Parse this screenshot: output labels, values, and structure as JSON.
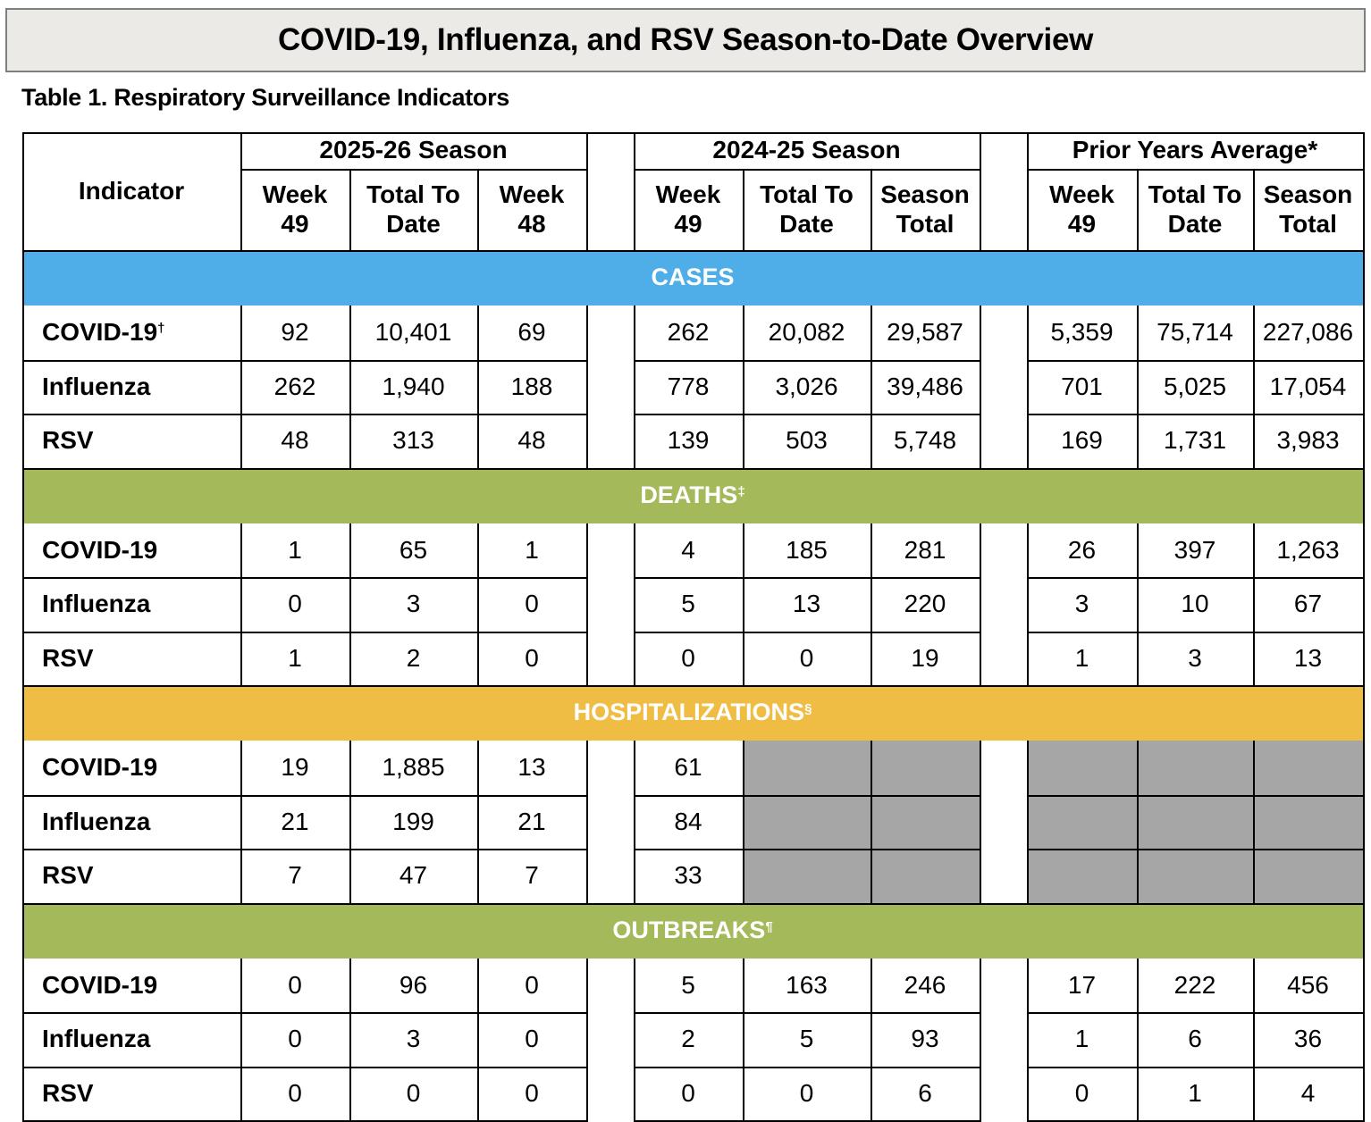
{
  "title": "COVID-19, Influenza, and RSV Season-to-Date Overview",
  "table_caption": "Table 1. Respiratory Surveillance Indicators",
  "colors": {
    "cases": "#4fade8",
    "deaths": "#a4b95a",
    "hospitalizations": "#f0bd44",
    "outbreaks": "#a4b95a",
    "not_available": "#a6a6a6",
    "title_background": "#eceae6"
  },
  "header": {
    "indicator": "Indicator",
    "groups": [
      "2025-26 Season",
      "2024-25 Season",
      "Prior Years Average*"
    ],
    "columns": [
      [
        "Week",
        "49"
      ],
      [
        "Total To",
        "Date"
      ],
      [
        "Week",
        "48"
      ],
      [
        "Week",
        "49"
      ],
      [
        "Total To",
        "Date"
      ],
      [
        "Season",
        "Total"
      ],
      [
        "Week",
        "49"
      ],
      [
        "Total To",
        "Date"
      ],
      [
        "Season",
        "Total"
      ]
    ]
  },
  "sections": [
    {
      "title": "CASES",
      "mark": "",
      "rows": [
        {
          "label": "COVID-19",
          "mark": "†",
          "values": [
            "92",
            "10,401",
            "69",
            "262",
            "20,082",
            "29,587",
            "5,359",
            "75,714",
            "227,086"
          ]
        },
        {
          "label": "Influenza",
          "mark": "",
          "values": [
            "262",
            "1,940",
            "188",
            "778",
            "3,026",
            "39,486",
            "701",
            "5,025",
            "17,054"
          ]
        },
        {
          "label": "RSV",
          "mark": "",
          "values": [
            "48",
            "313",
            "48",
            "139",
            "503",
            "5,748",
            "169",
            "1,731",
            "3,983"
          ]
        }
      ]
    },
    {
      "title": "DEATHS",
      "mark": "‡",
      "rows": [
        {
          "label": "COVID-19",
          "mark": "",
          "values": [
            "1",
            "65",
            "1",
            "4",
            "185",
            "281",
            "26",
            "397",
            "1,263"
          ]
        },
        {
          "label": "Influenza",
          "mark": "",
          "values": [
            "0",
            "3",
            "0",
            "5",
            "13",
            "220",
            "3",
            "10",
            "67"
          ]
        },
        {
          "label": "RSV",
          "mark": "",
          "values": [
            "1",
            "2",
            "0",
            "0",
            "0",
            "19",
            "1",
            "3",
            "13"
          ]
        }
      ]
    },
    {
      "title": "HOSPITALIZATIONS",
      "mark": "§",
      "rows": [
        {
          "label": "COVID-19",
          "mark": "",
          "values": [
            "19",
            "1,885",
            "13",
            "61",
            null,
            null,
            null,
            null,
            null
          ]
        },
        {
          "label": "Influenza",
          "mark": "",
          "values": [
            "21",
            "199",
            "21",
            "84",
            null,
            null,
            null,
            null,
            null
          ]
        },
        {
          "label": "RSV",
          "mark": "",
          "values": [
            "7",
            "47",
            "7",
            "33",
            null,
            null,
            null,
            null,
            null
          ]
        }
      ]
    },
    {
      "title": "OUTBREAKS",
      "mark": "¶",
      "rows": [
        {
          "label": "COVID-19",
          "mark": "",
          "values": [
            "0",
            "96",
            "0",
            "5",
            "163",
            "246",
            "17",
            "222",
            "456"
          ]
        },
        {
          "label": "Influenza",
          "mark": "",
          "values": [
            "0",
            "3",
            "0",
            "2",
            "5",
            "93",
            "1",
            "6",
            "36"
          ]
        },
        {
          "label": "RSV",
          "mark": "",
          "values": [
            "0",
            "0",
            "0",
            "0",
            "0",
            "6",
            "0",
            "1",
            "4"
          ]
        }
      ]
    }
  ]
}
